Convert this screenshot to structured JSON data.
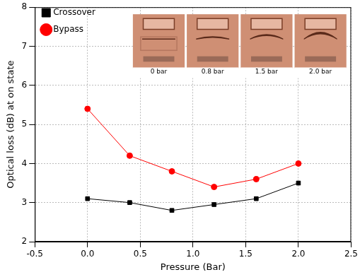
{
  "chart_data": {
    "type": "line",
    "x_label": "Pressure (Bar)",
    "y_label": "Optical loss (dB) at on state",
    "x": [
      0,
      0.4,
      0.8,
      1.2,
      1.6,
      2.0
    ],
    "series": [
      {
        "name": "Crossover",
        "color": "#000000",
        "marker": "square",
        "values": [
          3.1,
          3.0,
          2.8,
          2.95,
          3.1,
          3.5
        ]
      },
      {
        "name": "Bypass",
        "color": "#ff0000",
        "marker": "circle",
        "values": [
          5.4,
          4.2,
          3.8,
          3.4,
          3.6,
          4.0
        ]
      }
    ],
    "xlim": [
      -0.5,
      2.5
    ],
    "xticks": [
      {
        "value": -0.5,
        "label": "-0.5"
      },
      {
        "value": 0,
        "label": "0.0"
      },
      0.5,
      {
        "value": 1,
        "label": "1.0"
      },
      1.5,
      {
        "value": 2,
        "label": "2.0"
      },
      2.5
    ],
    "ylim": [
      2,
      8
    ],
    "yticks": [
      2,
      3,
      4,
      5,
      6,
      7,
      8
    ],
    "grid": true,
    "legend": "upper left",
    "annotations": [
      "0 bar",
      "0.8 bar",
      "1.5 bar",
      "2.0 bar"
    ]
  }
}
